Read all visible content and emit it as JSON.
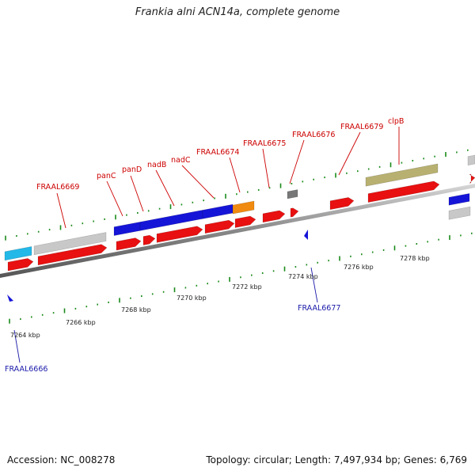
{
  "title": "Frankia alni ACN14a, complete genome",
  "footer": {
    "accession": "Accession: NC_008278",
    "summary": "Topology: circular; Length: 7,497,934 bp; Genes: 6,769"
  },
  "colors": {
    "cds_forward": "#e81010",
    "cds_reverse": "#e81010",
    "gray_feature": "#c8c8c8",
    "blue_feature": "#1515d8",
    "cyan_feature": "#22b8e8",
    "orange_feature": "#f08a10",
    "olive_feature": "#b8b070",
    "tick_green": "#1a8a1a",
    "label_red": "#cc0000",
    "label_blue": "#1a1aaa"
  },
  "scale_labels": [
    "7264 kbp",
    "7266 kbp",
    "7268 kbp",
    "7270 kbp",
    "7272 kbp",
    "7274 kbp",
    "7276 kbp",
    "7278 kbp"
  ],
  "gene_labels_top": [
    "FRAAL6669",
    "panC",
    "panD",
    "nadB",
    "nadC",
    "FRAAL6674",
    "FRAAL6675",
    "FRAAL6676",
    "FRAAL6679",
    "clpB"
  ],
  "gene_labels_bottom": [
    "FRAAL6666",
    "FRAAL6677"
  ]
}
